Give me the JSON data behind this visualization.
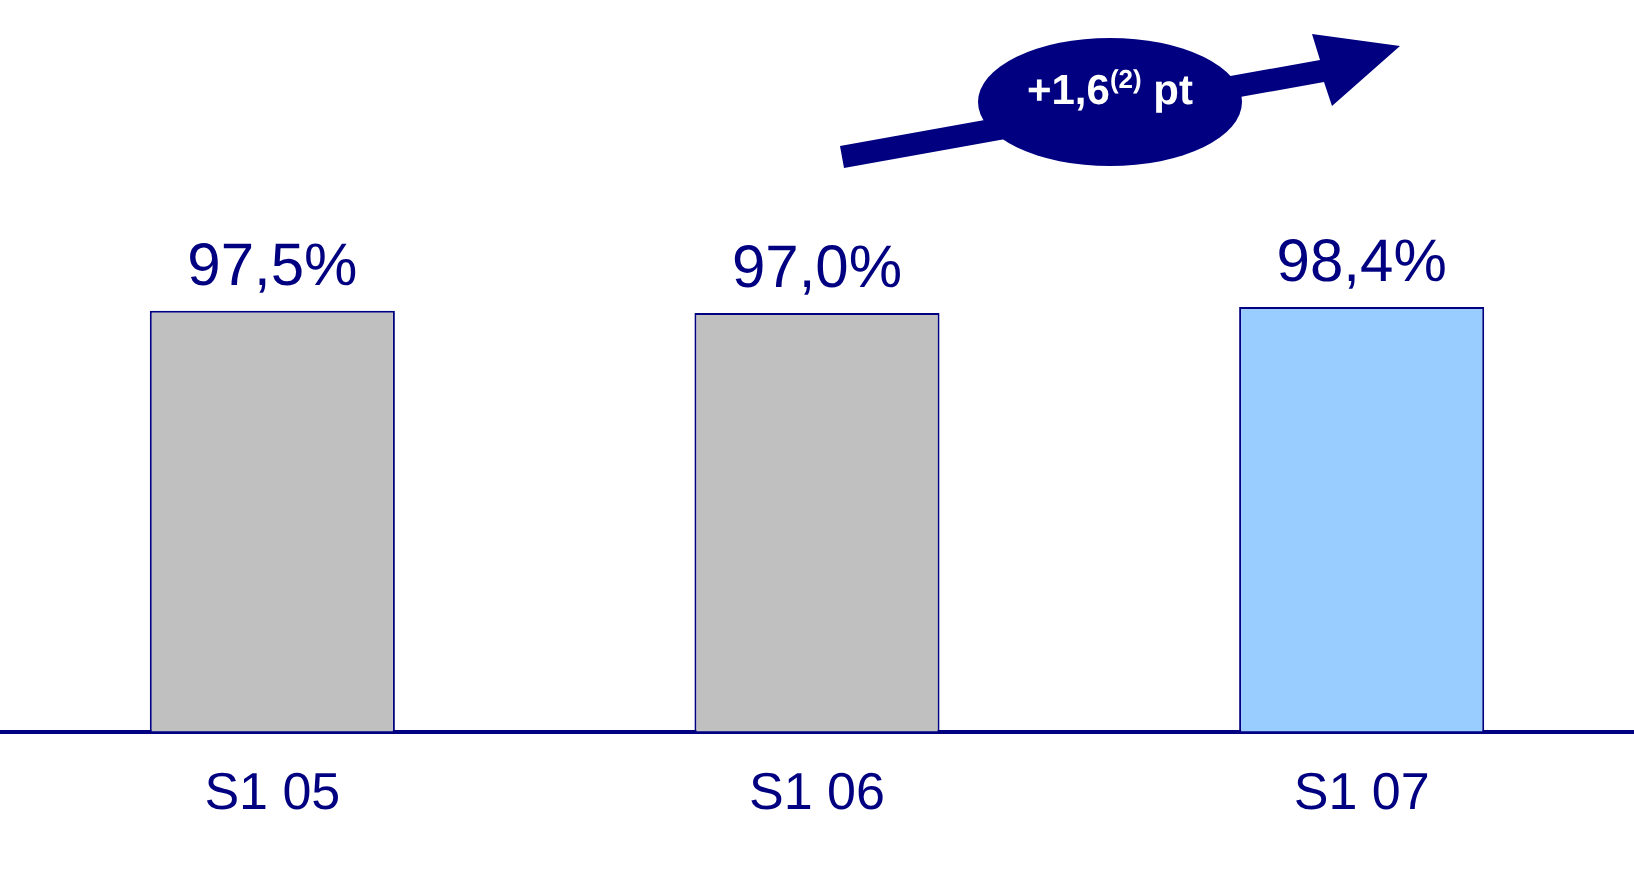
{
  "chart_data": {
    "type": "bar",
    "categories": [
      "S1 05",
      "S1 06",
      "S1 07"
    ],
    "values": [
      97.5,
      97.0,
      98.4
    ],
    "colors": [
      "#c0c0c0",
      "#c0c0c0",
      "#99ccff"
    ],
    "tick_labels": "x",
    "value_labels": [
      "97,5%",
      "97,0%",
      "98,4%"
    ],
    "legend": false,
    "annotations": [
      "+1,6$^{(2)}$ pt"
    ]
  }
}
